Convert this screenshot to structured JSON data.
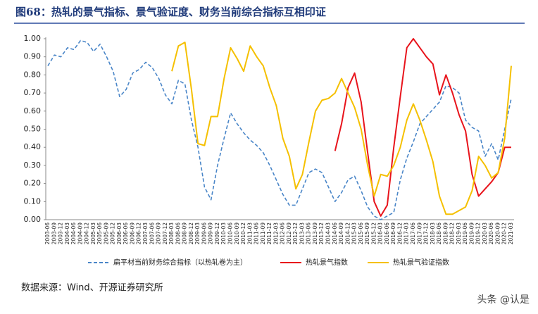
{
  "chart_data": {
    "type": "line",
    "title": "图68：热轧的景气指标、景气验证度、财务当前综合指标互相印证",
    "source": "数据来源：Wind、开源证券研究所",
    "watermark": "头条 @认是",
    "categories": [
      "2003-06",
      "2003-09",
      "2003-12",
      "2004-03",
      "2004-06",
      "2004-09",
      "2004-12",
      "2005-03",
      "2005-06",
      "2005-09",
      "2005-12",
      "2006-03",
      "2006-06",
      "2006-09",
      "2006-12",
      "2007-03",
      "2007-06",
      "2007-09",
      "2007-12",
      "2008-03",
      "2008-06",
      "2008-09",
      "2008-12",
      "2009-03",
      "2009-06",
      "2009-09",
      "2009-12",
      "2010-03",
      "2010-06",
      "2010-09",
      "2010-12",
      "2011-03",
      "2011-06",
      "2011-09",
      "2011-12",
      "2012-03",
      "2012-06",
      "2012-09",
      "2012-12",
      "2013-03",
      "2013-06",
      "2013-09",
      "2013-12",
      "2014-03",
      "2014-06",
      "2014-09",
      "2014-12",
      "2015-03",
      "2015-06",
      "2015-09",
      "2015-12",
      "2016-03",
      "2016-06",
      "2016-09",
      "2016-12",
      "2017-03",
      "2017-06",
      "2017-09",
      "2017-12",
      "2018-03",
      "2018-06",
      "2018-09",
      "2018-12",
      "2019-03",
      "2019-06",
      "2019-09",
      "2019-12",
      "2020-03",
      "2020-06",
      "2020-09",
      "2020-12",
      "2021-03"
    ],
    "series": [
      {
        "name": "扁平材当前财务综合指标（以热轧卷为主）",
        "color": "#4a86c8",
        "dashed": true,
        "values": [
          0.85,
          0.91,
          0.9,
          0.95,
          0.94,
          0.99,
          0.98,
          0.93,
          0.97,
          0.9,
          0.82,
          0.68,
          0.72,
          0.81,
          0.83,
          0.87,
          0.84,
          0.78,
          0.69,
          0.64,
          0.77,
          0.75,
          0.55,
          0.4,
          0.18,
          0.11,
          0.3,
          0.45,
          0.59,
          0.53,
          0.48,
          0.44,
          0.41,
          0.37,
          0.3,
          0.22,
          0.14,
          0.08,
          0.08,
          0.17,
          0.26,
          0.28,
          0.26,
          0.18,
          0.1,
          0.15,
          0.22,
          0.24,
          0.16,
          0.07,
          0.02,
          0.0,
          0.02,
          0.04,
          0.22,
          0.34,
          0.43,
          0.53,
          0.57,
          0.61,
          0.65,
          0.74,
          0.73,
          0.7,
          0.55,
          0.51,
          0.49,
          0.35,
          0.42,
          0.33,
          0.5,
          0.67
        ]
      },
      {
        "name": "热轧景气指数",
        "color": "#e8141c",
        "dashed": false,
        "values": [
          null,
          null,
          null,
          null,
          null,
          null,
          null,
          null,
          null,
          null,
          null,
          null,
          null,
          null,
          null,
          null,
          null,
          null,
          null,
          null,
          null,
          null,
          null,
          null,
          null,
          null,
          null,
          null,
          null,
          null,
          null,
          null,
          null,
          null,
          null,
          null,
          null,
          null,
          null,
          null,
          null,
          null,
          null,
          null,
          0.38,
          0.53,
          0.73,
          0.81,
          0.65,
          0.37,
          0.1,
          0.02,
          0.08,
          0.4,
          0.68,
          0.95,
          1.0,
          0.95,
          0.9,
          0.86,
          0.69,
          0.8,
          0.7,
          0.58,
          0.49,
          0.25,
          0.13,
          0.17,
          0.21,
          0.26,
          0.4,
          0.4
        ]
      },
      {
        "name": "热轧景气验证指数",
        "color": "#f5c000",
        "dashed": false,
        "values": [
          null,
          null,
          null,
          null,
          null,
          null,
          null,
          null,
          null,
          null,
          null,
          null,
          null,
          null,
          null,
          null,
          null,
          null,
          null,
          0.82,
          0.96,
          0.98,
          0.72,
          0.42,
          0.41,
          0.57,
          0.57,
          0.78,
          0.95,
          0.89,
          0.82,
          0.96,
          0.9,
          0.85,
          0.73,
          0.63,
          0.45,
          0.35,
          0.17,
          0.25,
          0.43,
          0.6,
          0.66,
          0.67,
          0.7,
          0.78,
          0.7,
          0.62,
          0.5,
          0.3,
          0.13,
          0.25,
          0.24,
          0.3,
          0.4,
          0.55,
          0.64,
          0.55,
          0.44,
          0.32,
          0.13,
          0.03,
          0.03,
          0.05,
          0.07,
          0.16,
          0.35,
          0.3,
          0.23,
          0.26,
          0.45,
          0.85
        ]
      }
    ],
    "ylim": [
      0,
      1
    ],
    "yticks": [
      {
        "value": 0,
        "label": "0.00"
      },
      {
        "value": 0.1,
        "label": "0.10"
      },
      {
        "value": 0.2,
        "label": "0.20"
      },
      {
        "value": 0.3,
        "label": "0.30"
      },
      {
        "value": 0.4,
        "label": "0.40"
      },
      {
        "value": 0.5,
        "label": "0.50"
      },
      {
        "value": 0.6,
        "label": "0.60"
      },
      {
        "value": 0.7,
        "label": "0.70"
      },
      {
        "value": 0.8,
        "label": "0.80"
      },
      {
        "value": 0.9,
        "label": "0.90"
      },
      {
        "value": 1,
        "label": "1.00"
      }
    ],
    "grid": false
  }
}
